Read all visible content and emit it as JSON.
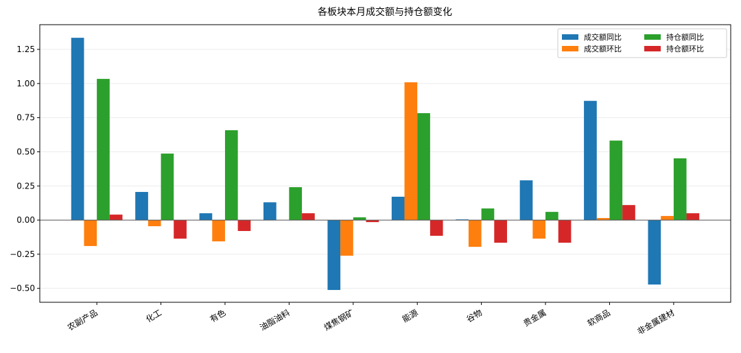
{
  "chart_data": {
    "type": "bar",
    "title": "各板块本月成交额与持仓额变化",
    "categories": [
      "农副产品",
      "化工",
      "有色",
      "油脂油料",
      "煤焦钢矿",
      "能源",
      "谷物",
      "贵金属",
      "软商品",
      "非金属建材"
    ],
    "series": [
      {
        "name": "成交额同比",
        "color": "#1f77b4",
        "values": [
          1.335,
          0.206,
          0.05,
          0.13,
          -0.512,
          0.171,
          0.005,
          0.291,
          0.873,
          -0.472
        ]
      },
      {
        "name": "成交额环比",
        "color": "#ff7f0e",
        "values": [
          -0.19,
          -0.045,
          -0.156,
          0,
          -0.261,
          1.009,
          -0.196,
          -0.136,
          0.015,
          0.03
        ]
      },
      {
        "name": "持仓额同比",
        "color": "#2ca02c",
        "values": [
          1.034,
          0.487,
          0.658,
          0.241,
          0.02,
          0.783,
          0.085,
          0.06,
          0.582,
          0.452
        ]
      },
      {
        "name": "持仓额环比",
        "color": "#d62728",
        "values": [
          0.04,
          -0.136,
          -0.08,
          0.05,
          -0.015,
          -0.115,
          -0.166,
          -0.166,
          0.11,
          0.05
        ]
      }
    ],
    "ylim": [
      -0.602,
      1.431
    ],
    "yticks": [
      {
        "value": -0.5,
        "label": "−0.50"
      },
      {
        "value": -0.25,
        "label": "−0.25"
      },
      {
        "value": 0,
        "label": "0.00"
      },
      {
        "value": 0.25,
        "label": "0.25"
      },
      {
        "value": 0.5,
        "label": "0.50"
      },
      {
        "value": 0.75,
        "label": "0.75"
      },
      {
        "value": 1,
        "label": "1.00"
      },
      {
        "value": 1.25,
        "label": "1.25"
      }
    ],
    "grid": true,
    "legend": "upper right"
  }
}
